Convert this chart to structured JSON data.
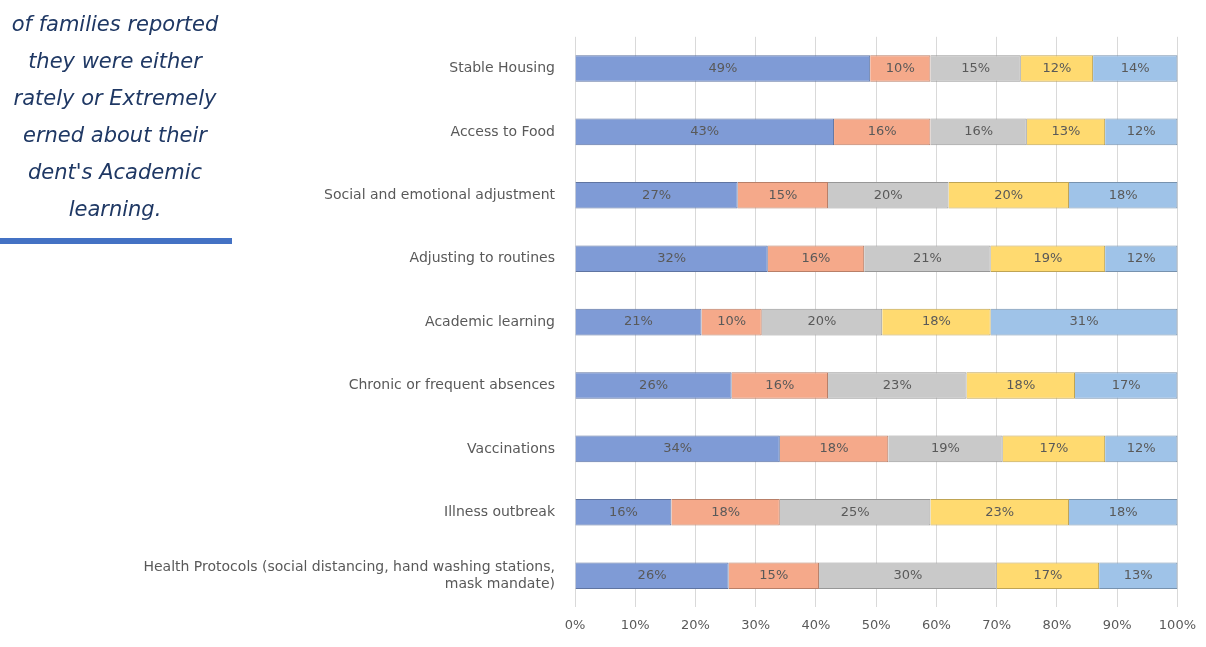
{
  "chart_data": {
    "type": "bar",
    "orientation": "horizontal",
    "stacked": true,
    "annotations": [
      "of families reported\nthey were either\nrately or Extremely\nerned about their\ndent's Academic\nlearning."
    ],
    "categories": [
      "Stable Housing",
      "Access to Food",
      "Social and emotional adjustment",
      "Adjusting to routines",
      "Academic learning",
      "Chronic or frequent absences",
      "Vaccinations",
      "Illness outbreak",
      "Health Protocols (social distancing, hand washing stations, mask mandate)"
    ],
    "series": [
      {
        "color": "#7f9bd6",
        "values": [
          49,
          43,
          27,
          32,
          21,
          26,
          34,
          16,
          25.5
        ],
        "value_labels": [
          "49%",
          "43%",
          "27%",
          "32%",
          "21%",
          "26%",
          "34%",
          "16%",
          "26%"
        ]
      },
      {
        "color": "#f5a98a",
        "values": [
          10,
          16,
          15,
          16,
          10,
          16,
          18,
          18,
          15
        ],
        "value_labels": [
          "10%",
          "16%",
          "15%",
          "16%",
          "10%",
          "16%",
          "18%",
          "18%",
          "15%"
        ]
      },
      {
        "color": "#c9c9c9",
        "values": [
          15,
          16,
          20,
          21,
          20,
          23,
          19,
          25,
          29.5
        ],
        "value_labels": [
          "15%",
          "16%",
          "20%",
          "21%",
          "20%",
          "23%",
          "19%",
          "25%",
          "30%"
        ]
      },
      {
        "color": "#ffda70",
        "values": [
          12,
          13,
          20,
          19,
          18,
          18,
          17,
          23,
          17
        ],
        "value_labels": [
          "12%",
          "13%",
          "20%",
          "19%",
          "18%",
          "18%",
          "17%",
          "23%",
          "17%"
        ]
      },
      {
        "color": "#9fc3e8",
        "values": [
          14,
          12,
          18,
          12,
          31,
          17,
          12,
          18,
          13
        ],
        "value_labels": [
          "14%",
          "12%",
          "18%",
          "12%",
          "31%",
          "17%",
          "12%",
          "18%",
          "13%"
        ]
      }
    ],
    "xlim": [
      0,
      100
    ],
    "xticks": [
      {
        "value": 0,
        "label": "0%"
      },
      {
        "value": 10,
        "label": "10%"
      },
      {
        "value": 20,
        "label": "20%"
      },
      {
        "value": 30,
        "label": "30%"
      },
      {
        "value": 40,
        "label": "40%"
      },
      {
        "value": 50,
        "label": "50%"
      },
      {
        "value": 60,
        "label": "60%"
      },
      {
        "value": 70,
        "label": "70%"
      },
      {
        "value": 80,
        "label": "80%"
      },
      {
        "value": 90,
        "label": "90%"
      },
      {
        "value": 100,
        "label": "100%"
      }
    ],
    "grid": "x",
    "legend": false
  }
}
